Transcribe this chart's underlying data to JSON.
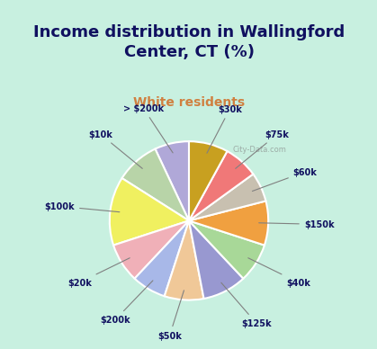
{
  "title": "Income distribution in Wallingford\nCenter, CT (%)",
  "subtitle": "White residents",
  "labels": [
    "> $200k",
    "$10k",
    "$100k",
    "$20k",
    "$200k",
    "$50k",
    "$125k",
    "$40k",
    "$150k",
    "$60k",
    "$75k",
    "$30k"
  ],
  "values": [
    7,
    9,
    14,
    8,
    7,
    8,
    9,
    8,
    9,
    6,
    7,
    8
  ],
  "colors": [
    "#b0a8d8",
    "#b8d4a8",
    "#f0f060",
    "#f0b0b8",
    "#a8b8e8",
    "#f0c898",
    "#9898d0",
    "#a8d898",
    "#f0a040",
    "#c8c0b0",
    "#f07878",
    "#c8a020"
  ],
  "background_color": "#c8f0e0",
  "pie_bg_color": "#e8f4e8",
  "title_color": "#101060",
  "subtitle_color": "#d08040",
  "label_color": "#101060",
  "watermark": "City-Data.com"
}
